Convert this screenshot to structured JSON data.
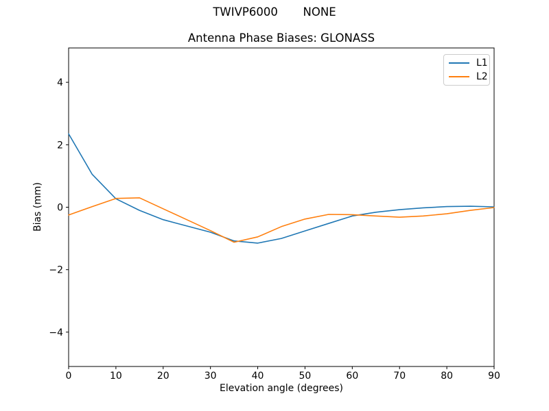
{
  "figure": {
    "suptitle": "TWIVP6000       NONE",
    "background": "#ffffff"
  },
  "chart_data": {
    "type": "line",
    "title": "Antenna Phase Biases: GLONASS",
    "xlabel": "Elevation angle (degrees)",
    "ylabel": "Bias (mm)",
    "xlim": [
      0,
      90
    ],
    "ylim": [
      -5.1,
      5.1
    ],
    "grid": false,
    "x_ticks": [
      0,
      10,
      20,
      30,
      40,
      50,
      60,
      70,
      80,
      90
    ],
    "x_tick_labels": [
      "0",
      "10",
      "20",
      "30",
      "40",
      "50",
      "60",
      "70",
      "80",
      "90"
    ],
    "y_ticks": [
      -4,
      -2,
      0,
      2,
      4
    ],
    "y_tick_labels": [
      "−4",
      "−2",
      "0",
      "2",
      "4"
    ],
    "legend": {
      "position": "upper right",
      "entries": [
        "L1",
        "L2"
      ]
    },
    "x": [
      0,
      5,
      10,
      15,
      20,
      25,
      30,
      35,
      40,
      45,
      50,
      55,
      60,
      65,
      70,
      75,
      80,
      85,
      90
    ],
    "series": [
      {
        "name": "L1",
        "color": "#1f77b4",
        "values": [
          2.35,
          1.05,
          0.27,
          -0.1,
          -0.4,
          -0.6,
          -0.8,
          -1.08,
          -1.15,
          -1.0,
          -0.76,
          -0.52,
          -0.28,
          -0.16,
          -0.08,
          -0.02,
          0.02,
          0.03,
          0.01
        ]
      },
      {
        "name": "L2",
        "color": "#ff7f0e",
        "values": [
          -0.25,
          0.02,
          0.28,
          0.3,
          -0.05,
          -0.4,
          -0.75,
          -1.12,
          -0.95,
          -0.62,
          -0.38,
          -0.23,
          -0.24,
          -0.28,
          -0.32,
          -0.28,
          -0.21,
          -0.1,
          -0.01
        ]
      }
    ]
  }
}
